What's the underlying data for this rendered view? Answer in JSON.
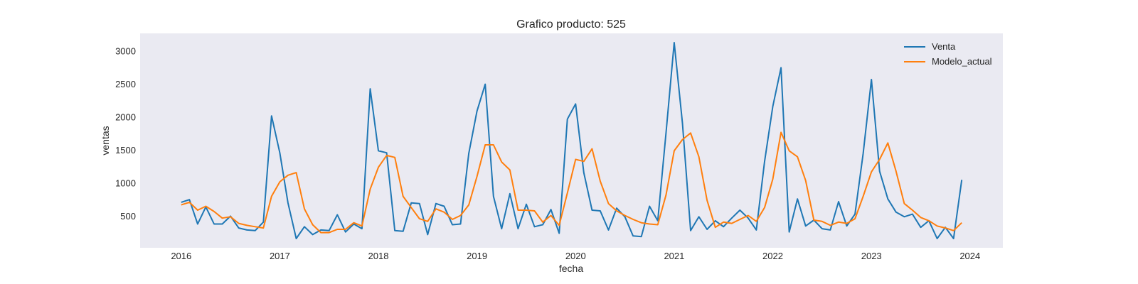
{
  "chart_data": {
    "type": "line",
    "title": "Grafico producto: 525",
    "xlabel": "fecha",
    "ylabel": "ventas",
    "x_start": "2016-01",
    "x_ticks": [
      "2016",
      "2017",
      "2018",
      "2019",
      "2020",
      "2021",
      "2022",
      "2023",
      "2024"
    ],
    "y_ticks": [
      500,
      1000,
      1500,
      2000,
      2500,
      3000
    ],
    "xlim": [
      "2015-08",
      "2024-05"
    ],
    "ylim": [
      20,
      3270
    ],
    "grid": false,
    "legend_position": "top-right",
    "background": "#eaeaf2",
    "series": [
      {
        "name": "Venta",
        "color": "#1f77b4",
        "values": [
          710,
          750,
          380,
          640,
          380,
          380,
          500,
          320,
          290,
          280,
          410,
          2020,
          1460,
          700,
          160,
          340,
          220,
          290,
          280,
          520,
          260,
          380,
          310,
          2430,
          1490,
          1460,
          280,
          270,
          700,
          690,
          220,
          690,
          650,
          370,
          380,
          1450,
          2090,
          2500,
          800,
          310,
          840,
          310,
          680,
          340,
          370,
          600,
          240,
          1970,
          2200,
          1160,
          590,
          580,
          290,
          620,
          490,
          200,
          190,
          650,
          430,
          1760,
          3130,
          1910,
          280,
          490,
          300,
          430,
          340,
          470,
          590,
          470,
          290,
          1330,
          2160,
          2750,
          260,
          760,
          350,
          440,
          310,
          290,
          720,
          350,
          530,
          1450,
          2570,
          1180,
          760,
          560,
          490,
          530,
          330,
          430,
          160,
          330,
          160,
          1050
        ]
      },
      {
        "name": "Modelo_actual",
        "color": "#ff7f0e",
        "values": [
          670,
          710,
          590,
          650,
          570,
          470,
          490,
          390,
          360,
          340,
          320,
          800,
          1020,
          1120,
          1160,
          610,
          370,
          250,
          250,
          300,
          300,
          400,
          350,
          910,
          1240,
          1420,
          1390,
          800,
          630,
          460,
          420,
          610,
          560,
          450,
          510,
          670,
          1100,
          1580,
          1580,
          1320,
          1200,
          590,
          590,
          580,
          410,
          510,
          360,
          850,
          1360,
          1330,
          1520,
          1030,
          690,
          580,
          510,
          450,
          400,
          380,
          370,
          820,
          1490,
          1660,
          1760,
          1400,
          740,
          330,
          410,
          390,
          450,
          510,
          420,
          630,
          1060,
          1770,
          1490,
          1400,
          1040,
          440,
          420,
          360,
          410,
          390,
          460,
          800,
          1170,
          1360,
          1610,
          1180,
          690,
          590,
          480,
          430,
          350,
          320,
          280,
          400
        ]
      }
    ]
  }
}
